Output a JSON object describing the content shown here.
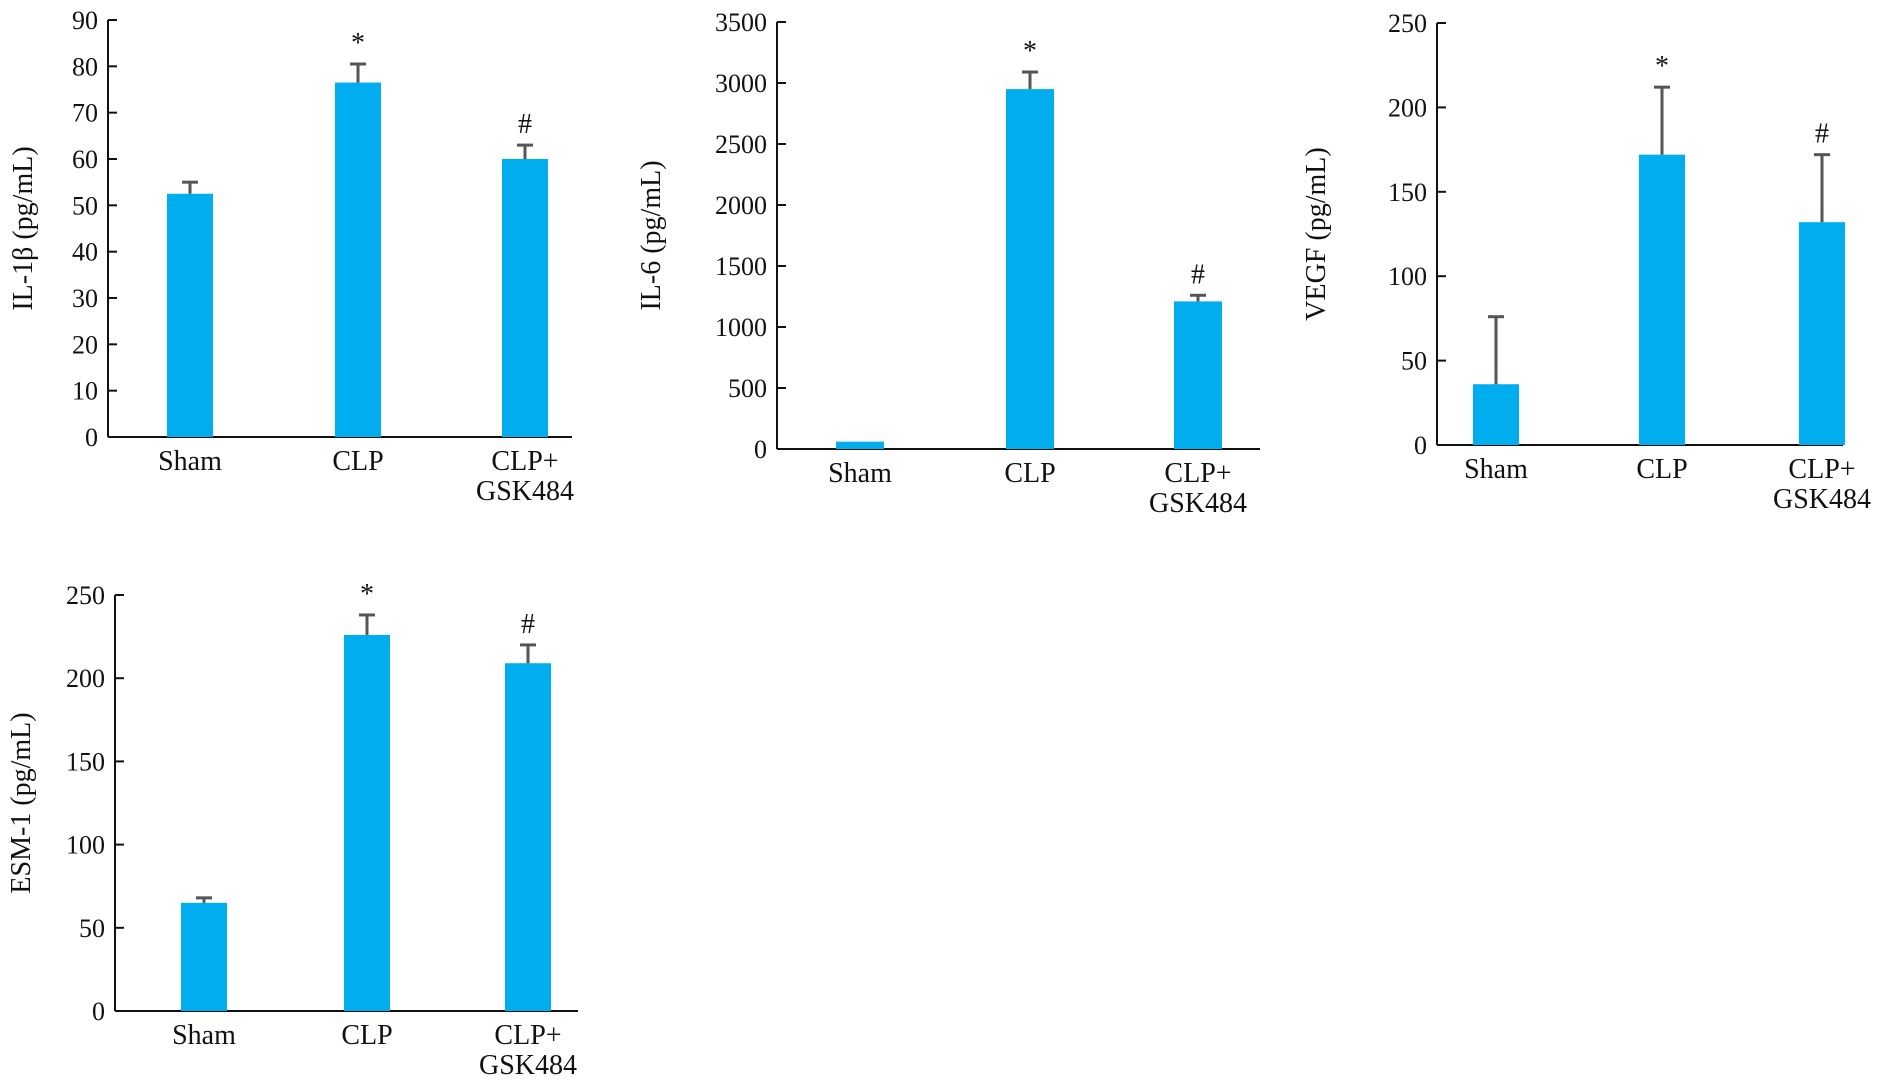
{
  "colors": {
    "bar": "#00aeef",
    "axis": "#111111",
    "error_bar": "#555555"
  },
  "chart_data": [
    {
      "type": "bar",
      "ylabel": "IL-1β (pg/mL)",
      "categories": [
        [
          "Sham"
        ],
        [
          "CLP"
        ],
        [
          "CLP+",
          "GSK484"
        ]
      ],
      "values": [
        52.5,
        76.5,
        60
      ],
      "errors": [
        2.5,
        4,
        3
      ],
      "annotations": [
        "",
        "*",
        "#"
      ],
      "ylim": [
        0,
        90
      ],
      "yticks": [
        0,
        10,
        20,
        30,
        40,
        50,
        60,
        70,
        80,
        90
      ]
    },
    {
      "type": "bar",
      "ylabel": "IL-6 (pg/mL)",
      "categories": [
        [
          "Sham"
        ],
        [
          "CLP"
        ],
        [
          "CLP+",
          "GSK484"
        ]
      ],
      "values": [
        60,
        2950,
        1210
      ],
      "errors": [
        0,
        140,
        50
      ],
      "annotations": [
        "",
        "*",
        "#"
      ],
      "ylim": [
        0,
        3500
      ],
      "yticks": [
        0,
        500,
        1000,
        1500,
        2000,
        2500,
        3000,
        3500
      ]
    },
    {
      "type": "bar",
      "ylabel": "VEGF (pg/mL)",
      "categories": [
        [
          "Sham"
        ],
        [
          "CLP"
        ],
        [
          "CLP+",
          "GSK484"
        ]
      ],
      "values": [
        36,
        172,
        132
      ],
      "errors": [
        40,
        40,
        40
      ],
      "annotations": [
        "",
        "*",
        "#"
      ],
      "ylim": [
        0,
        250
      ],
      "yticks": [
        0,
        50,
        100,
        150,
        200,
        250
      ]
    },
    {
      "type": "bar",
      "ylabel": "ESM-1 (pg/mL)",
      "categories": [
        [
          "Sham"
        ],
        [
          "CLP"
        ],
        [
          "CLP+",
          "GSK484"
        ]
      ],
      "values": [
        65,
        226,
        209
      ],
      "errors": [
        3,
        12,
        11
      ],
      "annotations": [
        "",
        "*",
        "#"
      ],
      "ylim": [
        0,
        250
      ],
      "yticks": [
        0,
        50,
        100,
        150,
        200,
        250
      ]
    }
  ]
}
